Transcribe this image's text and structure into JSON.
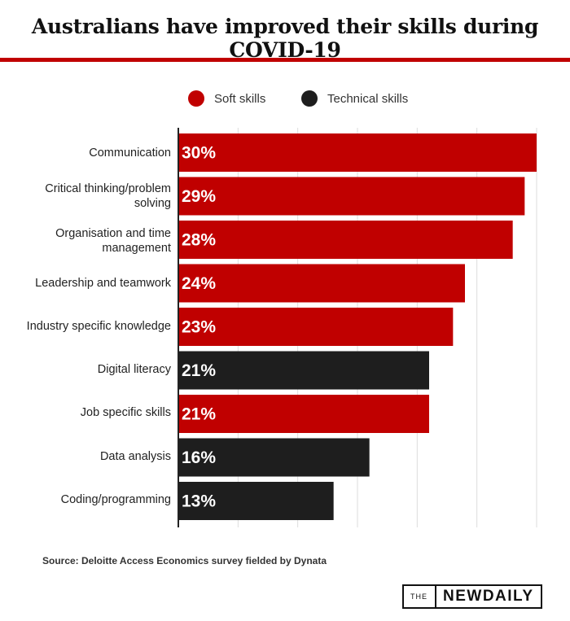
{
  "title": "Australians have improved their skills during COVID-19",
  "legend": [
    {
      "label": "Soft skills",
      "color": "#c00000"
    },
    {
      "label": "Technical skills",
      "color": "#1e1e1e"
    }
  ],
  "source": "Source: Deloitte Access Economics survey fielded by Dynata",
  "logo": {
    "prefix": "THE",
    "name": "NEWDAILY"
  },
  "chart_data": {
    "type": "bar",
    "orientation": "horizontal",
    "title": "Australians have improved their skills during COVID-19",
    "categories": [
      "Communication",
      "Critical thinking/problem solving",
      "Organisation and time management",
      "Leadership and teamwork",
      "Industry specific knowledge",
      "Digital literacy",
      "Job specific skills",
      "Data analysis",
      "Coding/programming"
    ],
    "values": [
      30,
      29,
      28,
      24,
      23,
      21,
      21,
      16,
      13
    ],
    "value_labels": [
      "30%",
      "29%",
      "28%",
      "24%",
      "23%",
      "21%",
      "21%",
      "16%",
      "13%"
    ],
    "groups": [
      "Soft skills",
      "Soft skills",
      "Soft skills",
      "Soft skills",
      "Soft skills",
      "Technical skills",
      "Soft skills",
      "Technical skills",
      "Technical skills"
    ],
    "xlim": [
      0,
      30
    ],
    "grid": "vertical",
    "legend_position": "top"
  }
}
